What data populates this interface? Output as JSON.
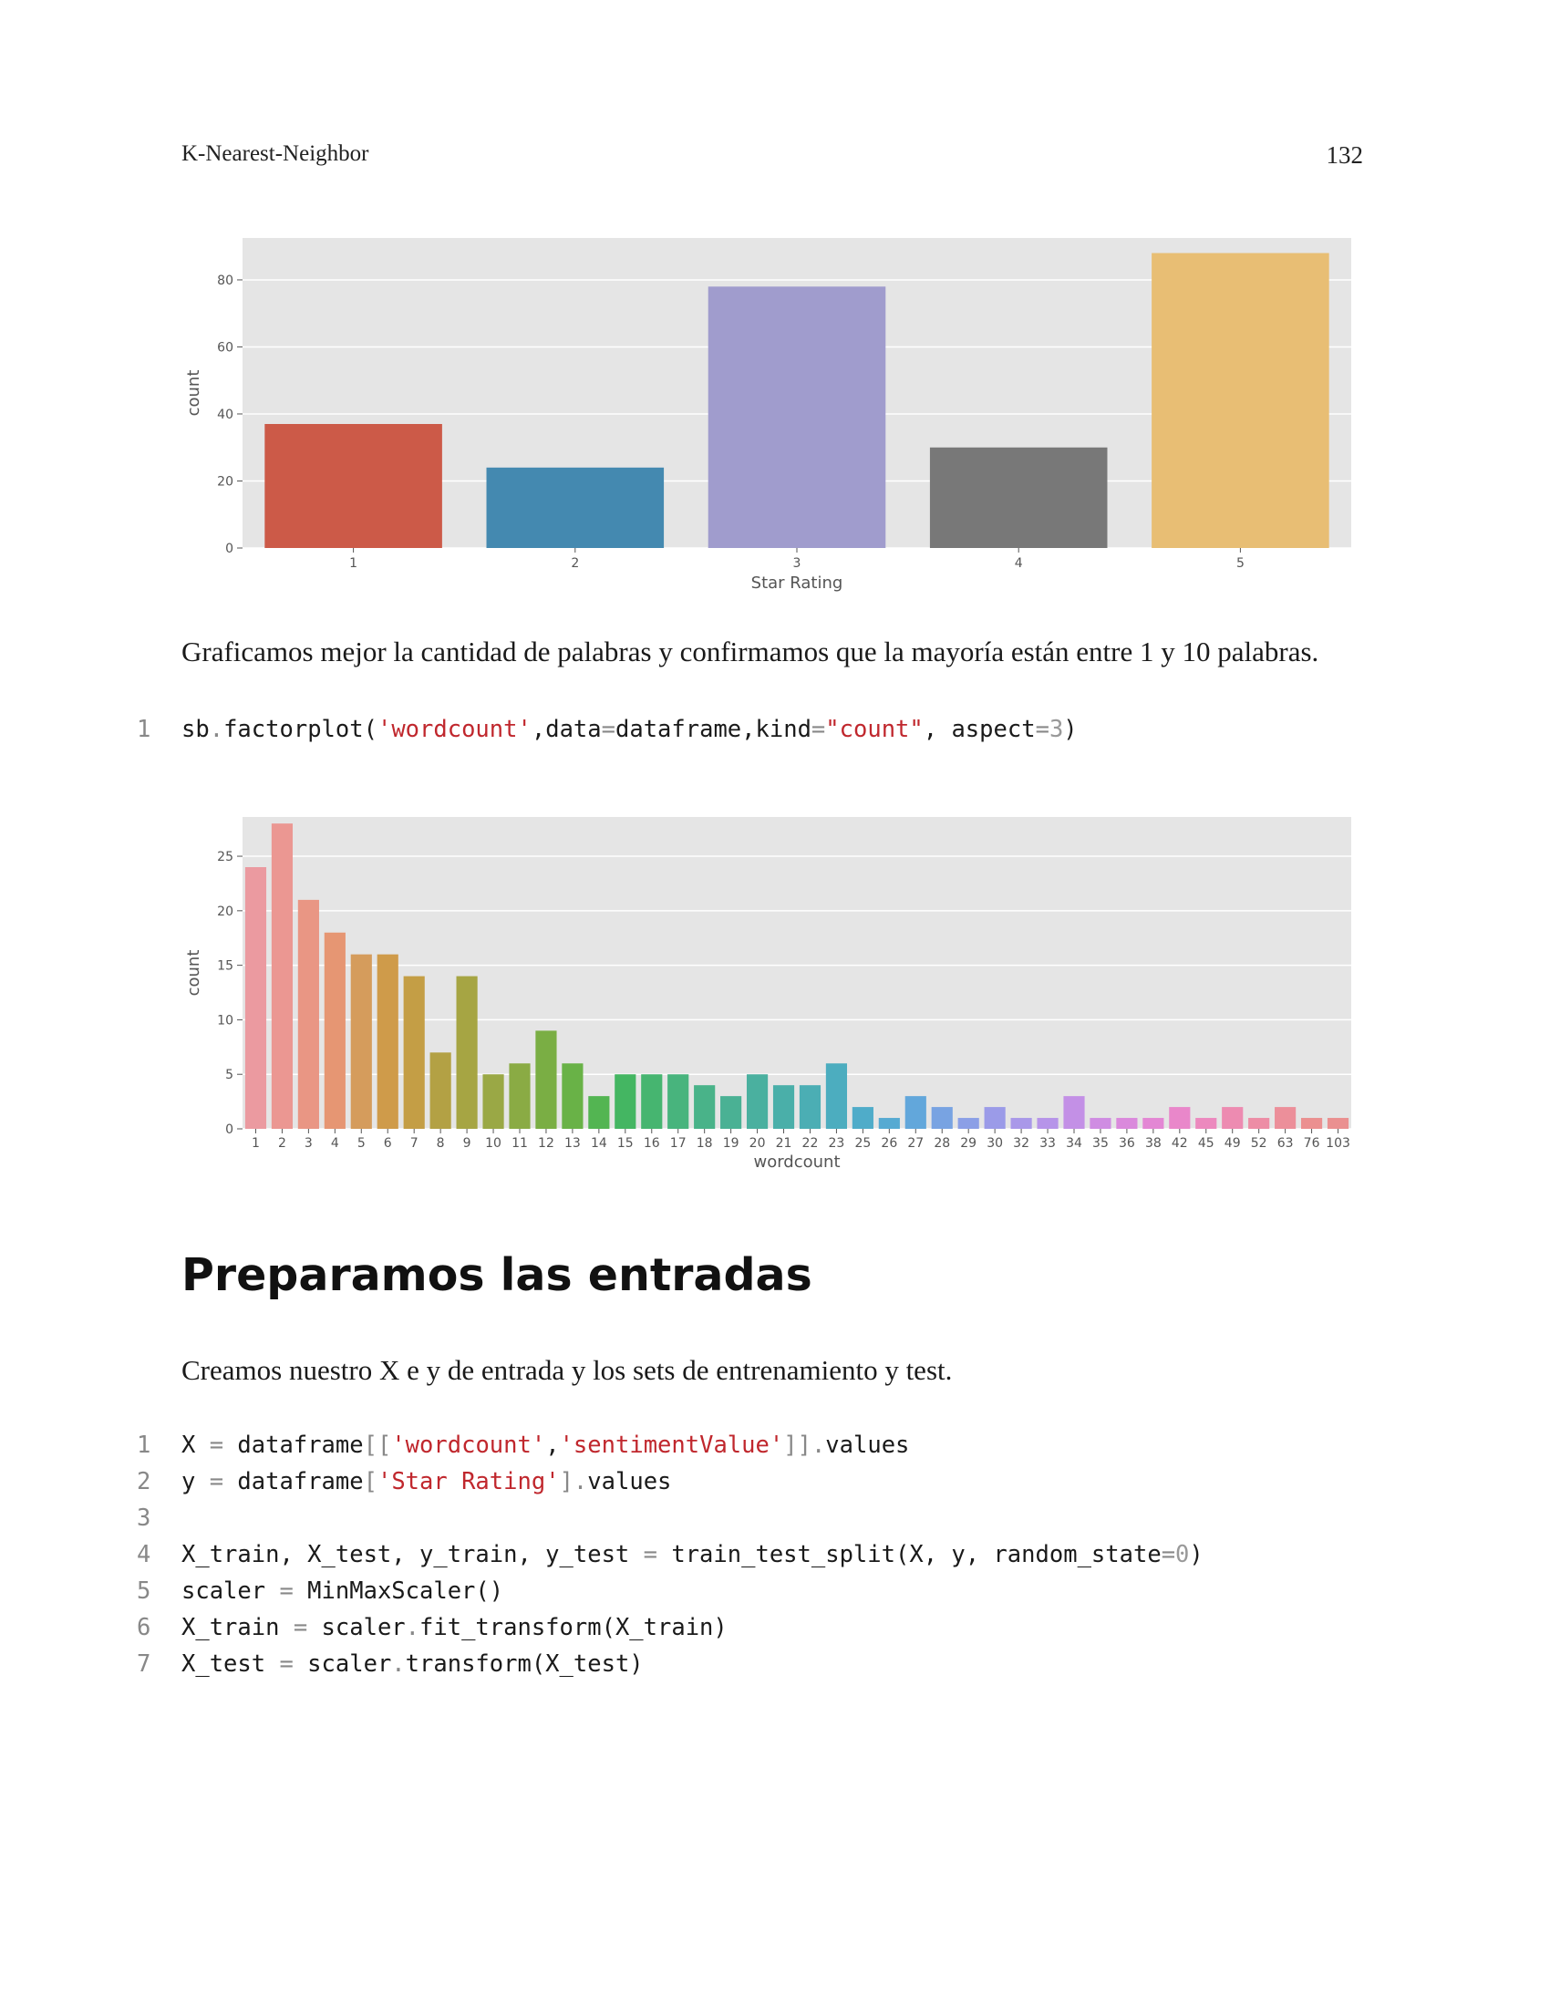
{
  "header": {
    "title": "K-Nearest-Neighbor",
    "page_number": "132"
  },
  "paragraphs": {
    "p1": "Graficamos mejor la cantidad de palabras y confirmamos que la mayoría están entre 1 y 10 palabras.",
    "p2": "Creamos nuestro X e y de entrada y los sets de entrenamiento y test."
  },
  "section_title": "Preparamos las entradas",
  "code_block_1": {
    "lines": [
      {
        "num": "1",
        "parts": [
          {
            "t": "sb",
            "c": ""
          },
          {
            "t": ".",
            "c": "op"
          },
          {
            "t": "factorplot(",
            "c": ""
          },
          {
            "t": "'wordcount'",
            "c": "s"
          },
          {
            "t": ",data",
            "c": ""
          },
          {
            "t": "=",
            "c": "op"
          },
          {
            "t": "dataframe,kind",
            "c": ""
          },
          {
            "t": "=",
            "c": "op"
          },
          {
            "t": "\"count\"",
            "c": "s"
          },
          {
            "t": ", aspect",
            "c": ""
          },
          {
            "t": "=",
            "c": "op"
          },
          {
            "t": "3",
            "c": "n"
          },
          {
            "t": ")",
            "c": ""
          }
        ]
      }
    ]
  },
  "code_block_2": {
    "lines": [
      {
        "num": "1",
        "parts": [
          {
            "t": "X ",
            "c": ""
          },
          {
            "t": "=",
            "c": "op"
          },
          {
            "t": " dataframe",
            "c": ""
          },
          {
            "t": "[[",
            "c": "op"
          },
          {
            "t": "'wordcount'",
            "c": "s"
          },
          {
            "t": ",",
            "c": ""
          },
          {
            "t": "'sentimentValue'",
            "c": "s"
          },
          {
            "t": "]]",
            "c": "op"
          },
          {
            "t": ".",
            "c": "op"
          },
          {
            "t": "values",
            "c": ""
          }
        ]
      },
      {
        "num": "2",
        "parts": [
          {
            "t": "y ",
            "c": ""
          },
          {
            "t": "=",
            "c": "op"
          },
          {
            "t": " dataframe",
            "c": ""
          },
          {
            "t": "[",
            "c": "op"
          },
          {
            "t": "'Star Rating'",
            "c": "s"
          },
          {
            "t": "]",
            "c": "op"
          },
          {
            "t": ".",
            "c": "op"
          },
          {
            "t": "values",
            "c": ""
          }
        ]
      },
      {
        "num": "3",
        "parts": []
      },
      {
        "num": "4",
        "parts": [
          {
            "t": "X_train, X_test, y_train, y_test ",
            "c": ""
          },
          {
            "t": "=",
            "c": "op"
          },
          {
            "t": " train_test_split(X, y, random_state",
            "c": ""
          },
          {
            "t": "=",
            "c": "op"
          },
          {
            "t": "0",
            "c": "n"
          },
          {
            "t": ")",
            "c": ""
          }
        ]
      },
      {
        "num": "5",
        "parts": [
          {
            "t": "scaler ",
            "c": ""
          },
          {
            "t": "=",
            "c": "op"
          },
          {
            "t": " MinMaxScaler()",
            "c": ""
          }
        ]
      },
      {
        "num": "6",
        "parts": [
          {
            "t": "X_train ",
            "c": ""
          },
          {
            "t": "=",
            "c": "op"
          },
          {
            "t": " scaler",
            "c": ""
          },
          {
            "t": ".",
            "c": "op"
          },
          {
            "t": "fit_transform(X_train)",
            "c": ""
          }
        ]
      },
      {
        "num": "7",
        "parts": [
          {
            "t": "X_test ",
            "c": ""
          },
          {
            "t": "=",
            "c": "op"
          },
          {
            "t": " scaler",
            "c": ""
          },
          {
            "t": ".",
            "c": "op"
          },
          {
            "t": "transform(X_test)",
            "c": ""
          }
        ]
      }
    ]
  },
  "chart_data": [
    {
      "type": "bar",
      "title": "",
      "xlabel": "Star Rating",
      "ylabel": "count",
      "categories": [
        "1",
        "2",
        "3",
        "4",
        "5"
      ],
      "values": [
        37,
        24,
        78,
        30,
        88
      ],
      "ylim": [
        0,
        92.5
      ],
      "yticks": [
        "0",
        "20",
        "40",
        "60",
        "80"
      ],
      "grid": true,
      "colors": [
        "#cc5a48",
        "#4489b0",
        "#a09ccd",
        "#787878",
        "#e8be74"
      ]
    },
    {
      "type": "bar",
      "title": "",
      "xlabel": "wordcount",
      "ylabel": "count",
      "categories": [
        "1",
        "2",
        "3",
        "4",
        "5",
        "6",
        "7",
        "8",
        "9",
        "10",
        "11",
        "12",
        "13",
        "14",
        "15",
        "16",
        "17",
        "18",
        "19",
        "20",
        "21",
        "22",
        "23",
        "25",
        "26",
        "27",
        "28",
        "29",
        "30",
        "32",
        "33",
        "34",
        "35",
        "36",
        "38",
        "42",
        "45",
        "49",
        "52",
        "63",
        "76",
        "103"
      ],
      "values": [
        24,
        28,
        21,
        18,
        16,
        16,
        14,
        7,
        14,
        5,
        6,
        9,
        6,
        3,
        5,
        5,
        5,
        4,
        3,
        5,
        4,
        4,
        6,
        2,
        1,
        3,
        2,
        1,
        2,
        1,
        1,
        3,
        1,
        1,
        1,
        2,
        1,
        2,
        1,
        2,
        1,
        1
      ],
      "ylim": [
        0,
        28.6
      ],
      "yticks": [
        "0",
        "5",
        "10",
        "15",
        "20",
        "25"
      ],
      "grid": true,
      "colors": [
        "#eb9aa0",
        "#eb9792",
        "#e99684",
        "#e69673",
        "#d59c5c",
        "#cf9b4a",
        "#c49e45",
        "#b3a144",
        "#a6a543",
        "#9aa845",
        "#8aab44",
        "#7aae44",
        "#69b247",
        "#53b552",
        "#44b662",
        "#46b570",
        "#48b47d",
        "#49b389",
        "#4ab194",
        "#4ab09f",
        "#4aafa9",
        "#4baeb4",
        "#4cadbf",
        "#4facc9",
        "#56aad2",
        "#62a7db",
        "#78a3e2",
        "#8b9fe6",
        "#9b9be8",
        "#a998e9",
        "#b694e9",
        "#c390e6",
        "#cf8ce2",
        "#da89dc",
        "#e387d4",
        "#e987ca",
        "#ec89be",
        "#ed8bb1",
        "#ed8da5",
        "#ec8f9a",
        "#eb9090",
        "#ea9090"
      ]
    }
  ]
}
